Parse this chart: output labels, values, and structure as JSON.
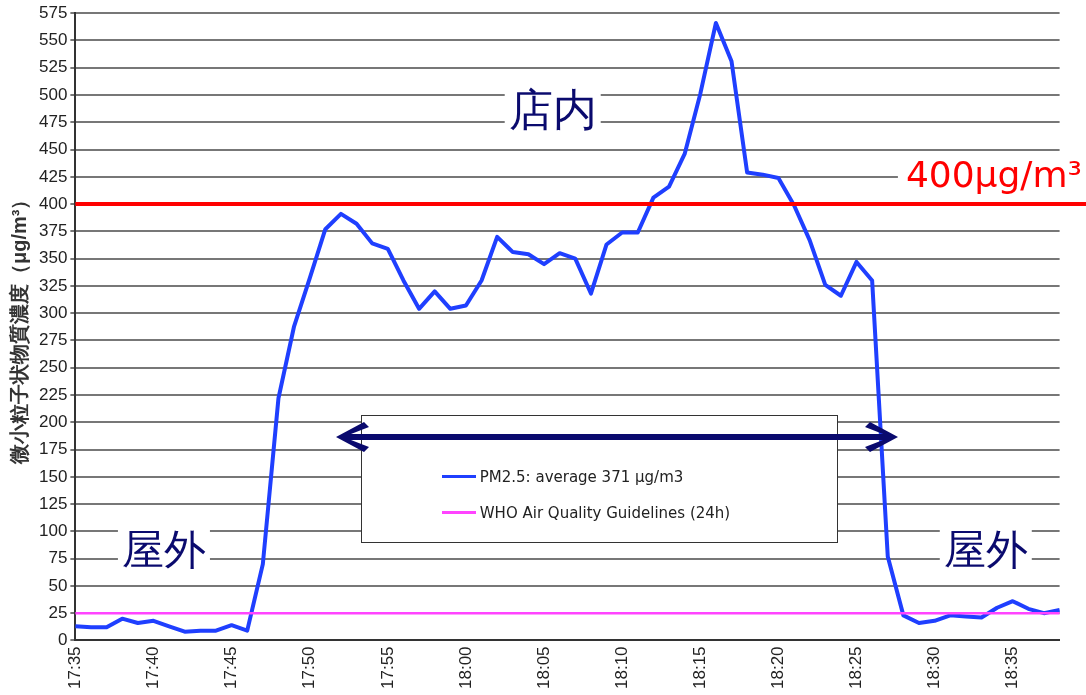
{
  "chart_data": {
    "type": "line",
    "ylabel": "微小粒子状物質濃度（μg/m³）",
    "categories": [
      "17:35",
      null,
      null,
      null,
      null,
      "17:40",
      null,
      null,
      null,
      null,
      "17:45",
      null,
      null,
      null,
      null,
      "17:50",
      null,
      null,
      null,
      null,
      "17:55",
      null,
      null,
      null,
      null,
      "18:00",
      null,
      null,
      null,
      null,
      "18:05",
      null,
      null,
      null,
      null,
      "18:10",
      null,
      null,
      null,
      null,
      "18:15",
      null,
      null,
      null,
      null,
      "18:20",
      null,
      null,
      null,
      null,
      "18:25",
      null,
      null,
      null,
      null,
      "18:30",
      null,
      null,
      null,
      null,
      "18:35",
      null,
      null,
      null
    ],
    "series": [
      {
        "name": "PM2.5: average 371 μg/m3",
        "color": "#1f3fff",
        "values": [
          13,
          12,
          12,
          20,
          16,
          18,
          13,
          8,
          9,
          9,
          14,
          9,
          70,
          222,
          288,
          332,
          377,
          391,
          382,
          364,
          359,
          330,
          304,
          320,
          304,
          307,
          330,
          370,
          356,
          354,
          345,
          355,
          350,
          318,
          363,
          374,
          374,
          406,
          416,
          446,
          501,
          566,
          531,
          429,
          427,
          424,
          399,
          367,
          326,
          316,
          347,
          330,
          77,
          23,
          16,
          18,
          23,
          22,
          21,
          30,
          36,
          29,
          25,
          28
        ]
      },
      {
        "name": "WHO Air Quality Guidelines (24h)",
        "color": "#ff44ff",
        "values": [
          25,
          25,
          25,
          25,
          25,
          25,
          25,
          25,
          25,
          25,
          25,
          25,
          25,
          25,
          25,
          25,
          25,
          25,
          25,
          25,
          25,
          25,
          25,
          25,
          25,
          25,
          25,
          25,
          25,
          25,
          25,
          25,
          25,
          25,
          25,
          25,
          25,
          25,
          25,
          25,
          25,
          25,
          25,
          25,
          25,
          25,
          25,
          25,
          25,
          25,
          25,
          25,
          25,
          25,
          25,
          25,
          25,
          25,
          25,
          25,
          25,
          25,
          25,
          25
        ]
      }
    ],
    "ylim": [
      0,
      575
    ],
    "yticks": [
      0,
      25,
      50,
      75,
      100,
      125,
      150,
      175,
      200,
      225,
      250,
      275,
      300,
      325,
      350,
      375,
      400,
      425,
      450,
      475,
      500,
      525,
      550,
      575
    ],
    "grid": "y",
    "legend": "bottom",
    "marker": "none",
    "ref_lines": [
      {
        "axis": "y",
        "value": 400,
        "label": "400μg/m³",
        "color": "#ff0000"
      }
    ],
    "annotations": [
      "店内",
      "屋外",
      "屋外"
    ]
  }
}
